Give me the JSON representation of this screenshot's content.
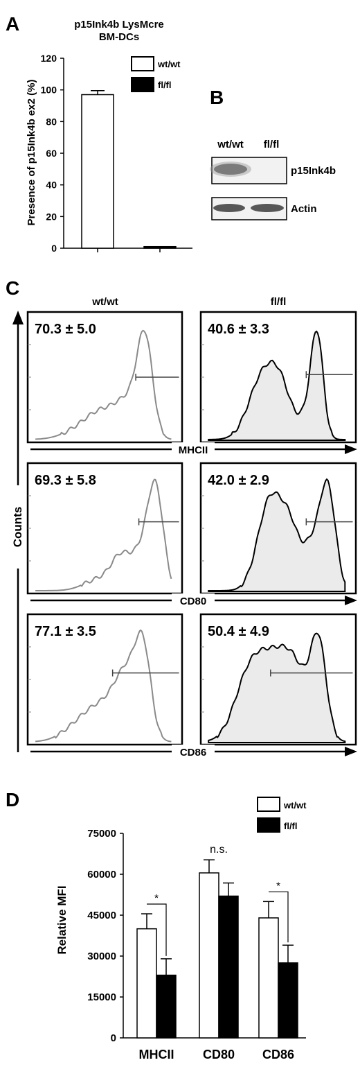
{
  "panels": {
    "a_letter": "A",
    "b_letter": "B",
    "c_letter": "C",
    "d_letter": "D"
  },
  "colors": {
    "wt": "#ffffff",
    "fl": "#000000",
    "wt_hist_line": "#8a8a8a",
    "fl_hist_fill": "#ebebeb",
    "fl_hist_line": "#000000"
  },
  "legend": {
    "wt": "wt/wt",
    "fl": "fl/fl"
  },
  "panel_b": {
    "lane1": "wt/wt",
    "lane2": "fl/fl",
    "blot1_label": "p15Ink4b",
    "blot2_label": "Actin"
  },
  "panel_c": {
    "col1": "wt/wt",
    "col2": "fl/fl",
    "y_label": "Counts",
    "rows": [
      {
        "marker": "MHCII",
        "wt_value": "70.3 ± 5.0",
        "fl_value": "40.6 ± 3.3"
      },
      {
        "marker": "CD80",
        "wt_value": "69.3 ± 5.8",
        "fl_value": "42.0 ± 2.9"
      },
      {
        "marker": "CD86",
        "wt_value": "77.1 ± 3.5",
        "fl_value": "50.4 ± 4.9"
      }
    ]
  },
  "chart_data": [
    {
      "panel": "A",
      "type": "bar",
      "title": "p15Ink4b LysMcre\nBM-DCs",
      "ylabel": "Presence of p15Ink4b ex2 (%)",
      "xlabel": "",
      "ylim": [
        0,
        120
      ],
      "yticks": [
        0,
        20,
        40,
        60,
        80,
        100,
        120
      ],
      "categories": [
        "wt/wt",
        "fl/fl"
      ],
      "values": [
        97,
        1
      ],
      "errors": [
        2.5,
        0
      ],
      "legend": "top-right"
    },
    {
      "panel": "D",
      "type": "bar",
      "title": "",
      "ylabel": "Relative MFI",
      "xlabel": "",
      "ylim": [
        0,
        75000
      ],
      "yticks": [
        0,
        15000,
        30000,
        45000,
        60000,
        75000
      ],
      "categories": [
        "MHCII",
        "CD80",
        "CD86"
      ],
      "series": [
        {
          "name": "wt/wt",
          "values": [
            40000,
            60500,
            44000
          ],
          "errors": [
            5500,
            4800,
            6000
          ]
        },
        {
          "name": "fl/fl",
          "values": [
            23000,
            52000,
            27500
          ],
          "errors": [
            6000,
            4800,
            6500
          ]
        }
      ],
      "significance": [
        "*",
        "n.s.",
        "*"
      ],
      "legend": "top-right"
    }
  ]
}
